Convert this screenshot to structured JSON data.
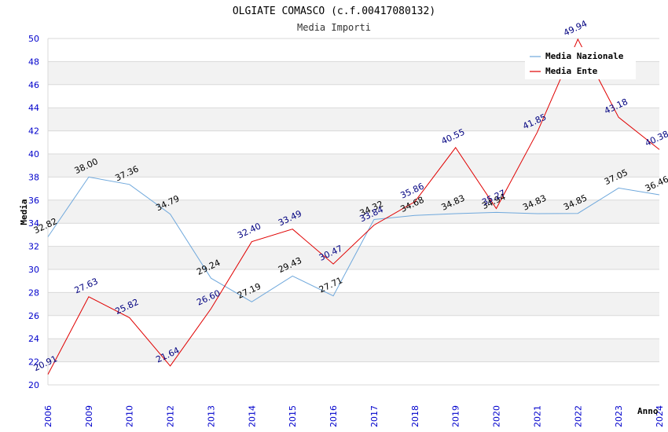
{
  "chart_data": {
    "type": "line",
    "title": "OLGIATE COMASCO (c.f.00417080132)",
    "subtitle": "Media Importi",
    "xlabel": "Anno",
    "ylabel": "Media",
    "ylim": [
      20,
      50
    ],
    "yticks": [
      "20",
      "22",
      "24",
      "26",
      "28",
      "30",
      "32",
      "34",
      "36",
      "38",
      "40",
      "42",
      "44",
      "46",
      "48",
      "50"
    ],
    "categories": [
      "2006",
      "2009",
      "2010",
      "2012",
      "2013",
      "2014",
      "2015",
      "2016",
      "2017",
      "2018",
      "2019",
      "2020",
      "2021",
      "2022",
      "2023",
      "2024"
    ],
    "grid": true,
    "legend_position": "top-right",
    "series": [
      {
        "name": "Media Nazionale",
        "color": "#6fa8dc",
        "values": [
          32.82,
          38.0,
          37.36,
          34.79,
          29.24,
          27.19,
          29.43,
          27.71,
          34.32,
          34.68,
          34.83,
          34.94,
          34.83,
          34.85,
          37.05,
          36.46
        ],
        "labels": [
          "32.82",
          "38.00",
          "37.36",
          "34.79",
          "29.24",
          "27.19",
          "29.43",
          "27.71",
          "34.32",
          "34.68",
          "34.83",
          "34.94",
          "34.83",
          "34.85",
          "37.05",
          "36.46"
        ]
      },
      {
        "name": "Media Ente",
        "color": "#e00000",
        "values": [
          20.91,
          27.63,
          25.82,
          21.64,
          26.6,
          32.4,
          33.49,
          30.47,
          33.84,
          35.86,
          40.55,
          35.27,
          41.85,
          49.94,
          43.18,
          40.38
        ],
        "labels": [
          "20.91",
          "27.63",
          "25.82",
          "21.64",
          "26.60",
          "32.40",
          "33.49",
          "30.47",
          "33.84",
          "35.86",
          "40.55",
          "35.27",
          "41.85",
          "49.94",
          "43.18",
          "40.38"
        ]
      }
    ]
  }
}
